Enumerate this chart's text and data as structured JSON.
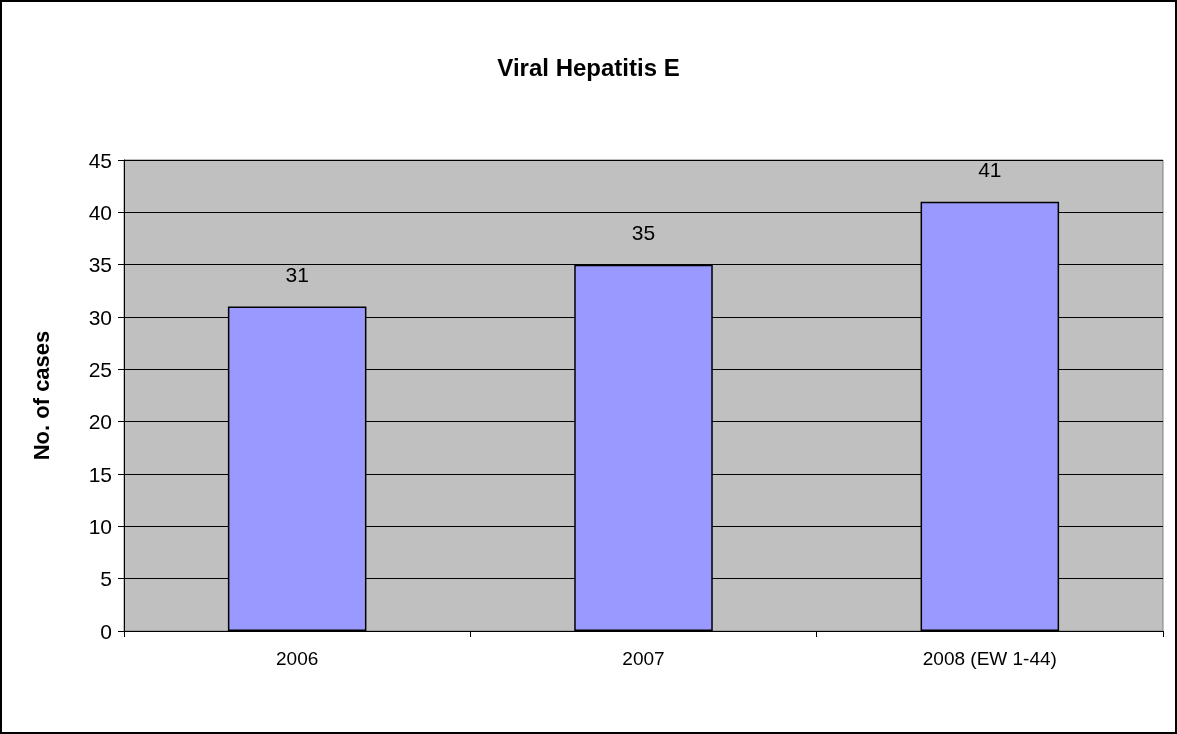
{
  "chart_data": {
    "type": "bar",
    "title": "Viral Hepatitis E",
    "ylabel": "No. of cases",
    "categories": [
      "2006",
      "2007",
      "2008 (EW 1-44)"
    ],
    "values": [
      31,
      35,
      41
    ],
    "color": "#9999ff",
    "ylim": [
      0,
      45
    ],
    "yticks": [
      0,
      5,
      10,
      15,
      20,
      25,
      30,
      35,
      40,
      45
    ],
    "grid": "y",
    "data_labels": true
  }
}
